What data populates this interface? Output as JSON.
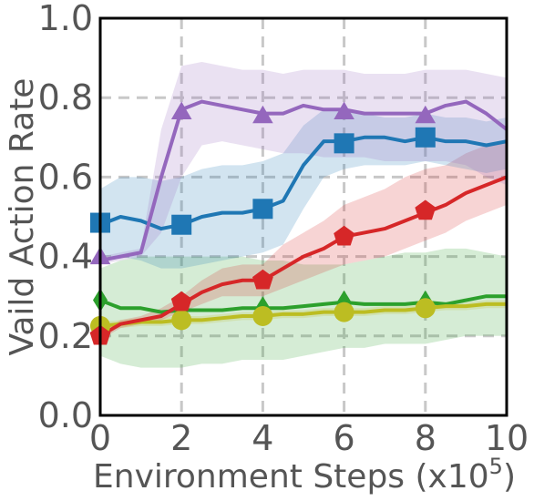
{
  "chart_data": {
    "type": "line",
    "xlabel": "Environment Steps (x10",
    "xlabel_exponent": "5",
    "xlabel_suffix": ")",
    "ylabel": "Vaild Action Rate",
    "xlim": [
      0,
      10
    ],
    "ylim": [
      0.0,
      1.0
    ],
    "x_ticks": [
      0,
      2,
      4,
      6,
      8,
      10
    ],
    "y_ticks": [
      0.0,
      0.2,
      0.4,
      0.6,
      0.8,
      1.0
    ],
    "x_tick_labels": [
      "0",
      "2",
      "4",
      "6",
      "8",
      "10"
    ],
    "y_tick_labels": [
      "0.0",
      "0.2",
      "0.4",
      "0.6",
      "0.8",
      "1.0"
    ],
    "grid": true,
    "legend": "none",
    "series": [
      {
        "color": "#2ca02c",
        "marker": "diamond",
        "x": [
          0,
          0.5,
          1,
          1.5,
          2,
          2.5,
          3,
          3.5,
          4,
          4.5,
          5,
          5.5,
          6,
          6.5,
          7,
          7.5,
          8,
          8.5,
          9,
          9.5,
          10
        ],
        "y": [
          0.29,
          0.27,
          0.27,
          0.26,
          0.265,
          0.265,
          0.265,
          0.27,
          0.27,
          0.27,
          0.275,
          0.28,
          0.285,
          0.28,
          0.28,
          0.28,
          0.285,
          0.28,
          0.29,
          0.3,
          0.3
        ],
        "lower": [
          0.15,
          0.13,
          0.12,
          0.12,
          0.12,
          0.13,
          0.13,
          0.14,
          0.14,
          0.14,
          0.15,
          0.16,
          0.17,
          0.17,
          0.18,
          0.18,
          0.18,
          0.19,
          0.2,
          0.2,
          0.2
        ],
        "upper": [
          0.37,
          0.39,
          0.4,
          0.4,
          0.4,
          0.4,
          0.4,
          0.4,
          0.39,
          0.39,
          0.38,
          0.38,
          0.38,
          0.39,
          0.4,
          0.41,
          0.41,
          0.42,
          0.42,
          0.41,
          0.4
        ],
        "markers_x": [
          0,
          2,
          4,
          6,
          8
        ],
        "markers_y": [
          0.29,
          0.265,
          0.27,
          0.285,
          0.285
        ]
      },
      {
        "color": "#bcbd22",
        "marker": "circle",
        "x": [
          0,
          0.5,
          1,
          1.5,
          2,
          2.5,
          3,
          3.5,
          4,
          4.5,
          5,
          5.5,
          6,
          6.5,
          7,
          7.5,
          8,
          8.5,
          9,
          9.5,
          10
        ],
        "y": [
          0.225,
          0.23,
          0.235,
          0.235,
          0.24,
          0.24,
          0.245,
          0.25,
          0.25,
          0.255,
          0.255,
          0.26,
          0.26,
          0.26,
          0.265,
          0.265,
          0.27,
          0.275,
          0.275,
          0.28,
          0.28
        ],
        "lower": [
          0.215,
          0.22,
          0.225,
          0.225,
          0.23,
          0.23,
          0.235,
          0.24,
          0.24,
          0.245,
          0.245,
          0.25,
          0.25,
          0.25,
          0.255,
          0.255,
          0.26,
          0.265,
          0.265,
          0.27,
          0.27
        ],
        "upper": [
          0.235,
          0.24,
          0.245,
          0.245,
          0.25,
          0.25,
          0.255,
          0.26,
          0.26,
          0.265,
          0.265,
          0.27,
          0.27,
          0.27,
          0.275,
          0.275,
          0.28,
          0.285,
          0.285,
          0.29,
          0.29
        ],
        "markers_x": [
          0,
          2,
          4,
          6,
          8
        ],
        "markers_y": [
          0.225,
          0.24,
          0.25,
          0.26,
          0.27
        ]
      },
      {
        "color": "#d62728",
        "marker": "pentagon",
        "x": [
          0,
          0.5,
          1,
          1.5,
          2,
          2.5,
          3,
          3.5,
          4,
          4.5,
          5,
          5.5,
          6,
          6.5,
          7,
          7.5,
          8,
          8.5,
          9,
          9.5,
          10
        ],
        "y": [
          0.2,
          0.23,
          0.24,
          0.25,
          0.28,
          0.31,
          0.33,
          0.34,
          0.34,
          0.37,
          0.4,
          0.42,
          0.45,
          0.46,
          0.47,
          0.49,
          0.51,
          0.53,
          0.56,
          0.58,
          0.6
        ],
        "lower": [
          0.19,
          0.22,
          0.23,
          0.24,
          0.26,
          0.28,
          0.3,
          0.3,
          0.3,
          0.32,
          0.34,
          0.36,
          0.38,
          0.39,
          0.4,
          0.42,
          0.44,
          0.46,
          0.49,
          0.51,
          0.53
        ],
        "upper": [
          0.21,
          0.24,
          0.25,
          0.27,
          0.3,
          0.34,
          0.37,
          0.38,
          0.38,
          0.43,
          0.46,
          0.49,
          0.53,
          0.55,
          0.57,
          0.6,
          0.62,
          0.63,
          0.66,
          0.68,
          0.69
        ],
        "markers_x": [
          0,
          2,
          4,
          6,
          8
        ],
        "markers_y": [
          0.2,
          0.285,
          0.34,
          0.45,
          0.515
        ]
      },
      {
        "color": "#1f77b4",
        "marker": "square",
        "x": [
          0,
          0.5,
          1,
          1.5,
          2,
          2.5,
          3,
          3.5,
          4,
          4.5,
          5,
          5.5,
          6,
          6.5,
          7,
          7.5,
          8,
          8.5,
          9,
          9.5,
          10
        ],
        "y": [
          0.48,
          0.5,
          0.49,
          0.47,
          0.48,
          0.5,
          0.51,
          0.51,
          0.52,
          0.54,
          0.63,
          0.69,
          0.69,
          0.7,
          0.7,
          0.69,
          0.7,
          0.69,
          0.69,
          0.68,
          0.69
        ],
        "lower": [
          0.4,
          0.4,
          0.39,
          0.37,
          0.37,
          0.38,
          0.39,
          0.4,
          0.41,
          0.43,
          0.52,
          0.6,
          0.62,
          0.63,
          0.63,
          0.63,
          0.64,
          0.63,
          0.62,
          0.61,
          0.62
        ],
        "upper": [
          0.57,
          0.6,
          0.6,
          0.59,
          0.6,
          0.62,
          0.63,
          0.63,
          0.64,
          0.66,
          0.73,
          0.77,
          0.77,
          0.76,
          0.75,
          0.75,
          0.76,
          0.75,
          0.75,
          0.74,
          0.75
        ],
        "markers_x": [
          0,
          2,
          4,
          6,
          8
        ],
        "markers_y": [
          0.485,
          0.48,
          0.52,
          0.685,
          0.7
        ]
      },
      {
        "color": "#9467bd",
        "marker": "triangle",
        "x": [
          0,
          0.5,
          1,
          1.5,
          2,
          2.5,
          3,
          3.5,
          4,
          4.5,
          5,
          5.5,
          6,
          6.5,
          7,
          7.5,
          8,
          8.5,
          9,
          9.5,
          10
        ],
        "y": [
          0.39,
          0.4,
          0.41,
          0.6,
          0.77,
          0.79,
          0.78,
          0.77,
          0.76,
          0.76,
          0.78,
          0.77,
          0.77,
          0.76,
          0.76,
          0.76,
          0.76,
          0.78,
          0.79,
          0.76,
          0.72
        ],
        "lower": [
          0.38,
          0.39,
          0.4,
          0.46,
          0.6,
          0.68,
          0.69,
          0.68,
          0.67,
          0.66,
          0.66,
          0.65,
          0.65,
          0.65,
          0.64,
          0.64,
          0.64,
          0.64,
          0.63,
          0.6,
          0.58
        ],
        "upper": [
          0.4,
          0.41,
          0.42,
          0.72,
          0.88,
          0.89,
          0.88,
          0.87,
          0.87,
          0.86,
          0.87,
          0.87,
          0.87,
          0.86,
          0.86,
          0.86,
          0.87,
          0.87,
          0.87,
          0.86,
          0.85
        ],
        "markers_x": [
          0,
          2,
          4,
          6,
          8
        ],
        "markers_y": [
          0.4,
          0.765,
          0.755,
          0.765,
          0.755
        ]
      }
    ]
  }
}
